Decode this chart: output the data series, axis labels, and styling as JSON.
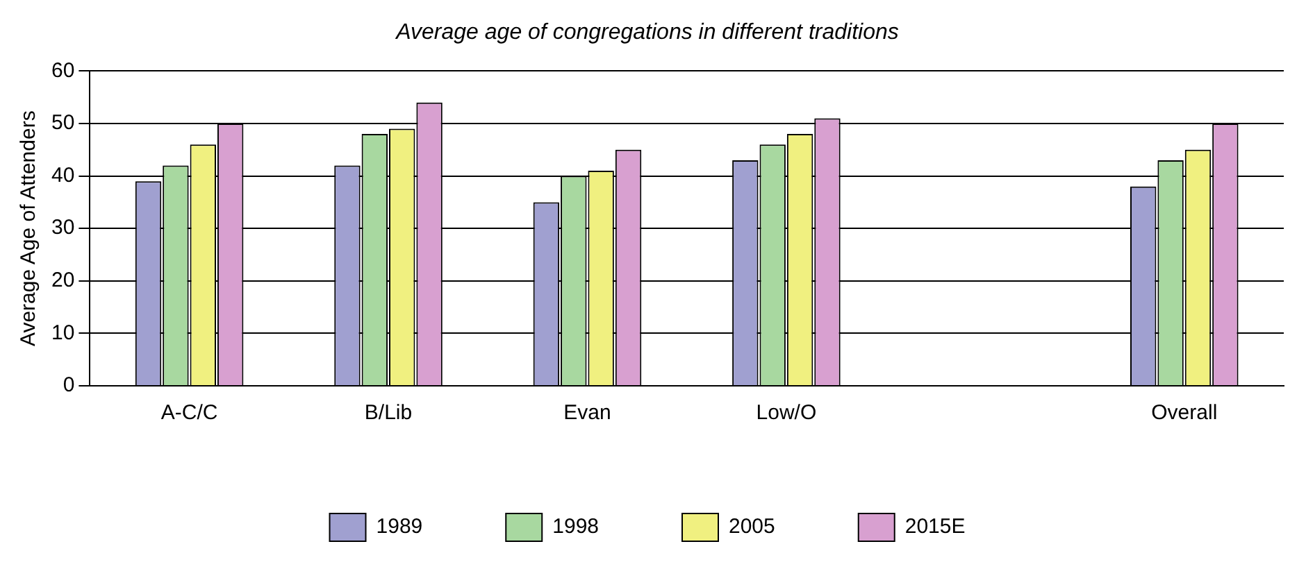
{
  "chart_data": {
    "type": "bar",
    "title": "Average age of congregations in different traditions",
    "ylabel": "Average Age of Attenders",
    "categories": [
      "A-C/C",
      "B/Lib",
      "Evan",
      "Low/O",
      null,
      "Overall"
    ],
    "series": [
      {
        "name": "1989",
        "color": "#a0a0d0",
        "values": [
          39,
          42,
          35,
          43,
          null,
          38
        ]
      },
      {
        "name": "1998",
        "color": "#a8d8a0",
        "values": [
          42,
          48,
          40,
          46,
          null,
          43
        ]
      },
      {
        "name": "2005",
        "color": "#f0f080",
        "values": [
          46,
          49,
          41,
          48,
          null,
          45
        ]
      },
      {
        "name": "2015E",
        "color": "#d8a0d0",
        "values": [
          50,
          54,
          45,
          51,
          null,
          50
        ]
      }
    ],
    "ylim": [
      0,
      60
    ],
    "yticks": [
      0,
      10,
      20,
      30,
      40,
      50,
      60
    ],
    "grid": "y",
    "legend": "bottom"
  }
}
